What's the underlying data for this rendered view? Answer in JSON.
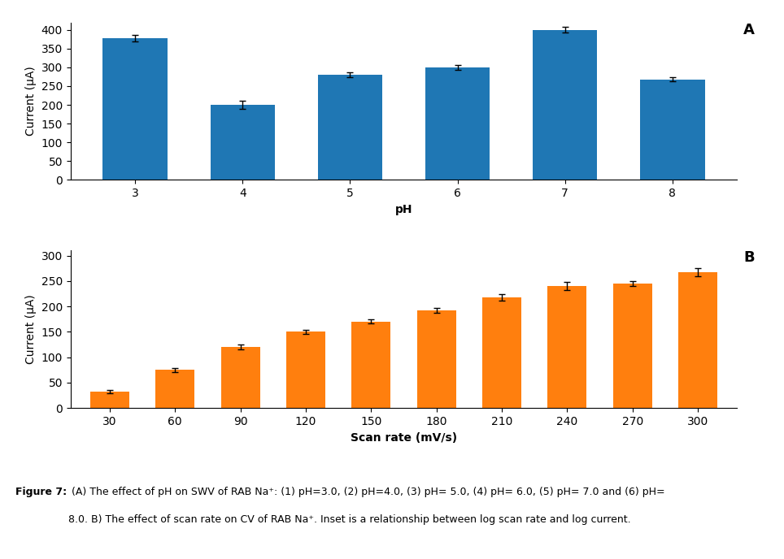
{
  "chart_data": [
    {
      "type": "bar",
      "categories": [
        "3",
        "4",
        "5",
        "6",
        "7",
        "8"
      ],
      "values": [
        378,
        200,
        280,
        300,
        400,
        268
      ],
      "errors": [
        8,
        10,
        6,
        7,
        8,
        6
      ],
      "y_label": "Current (μA)",
      "x_label": "pH",
      "annotations": [
        "A"
      ],
      "ylim": [
        0,
        420
      ],
      "yticks": [
        0,
        50,
        100,
        150,
        200,
        250,
        300,
        350,
        400
      ]
    },
    {
      "type": "bar",
      "categories": [
        "30",
        "60",
        "90",
        "120",
        "150",
        "180",
        "210",
        "240",
        "270",
        "300"
      ],
      "values": [
        32,
        75,
        120,
        150,
        170,
        192,
        218,
        240,
        245,
        268
      ],
      "errors": [
        3,
        4,
        5,
        4,
        4,
        5,
        7,
        8,
        5,
        8
      ],
      "y_label": "Current (μA)",
      "x_label": "Scan rate (mV/s)",
      "annotations": [
        "B"
      ],
      "ylim": [
        0,
        310
      ],
      "yticks": [
        0,
        50,
        100,
        150,
        200,
        250,
        300
      ]
    }
  ],
  "annotations": [
    "Figure 7:",
    " (A) The effect of pH on SWV of RAB Na⁺: (1) pH=3.0, (2) pH=4.0, (3) pH= 5.0, (4) pH= 6.0, (5) pH= 7.0 and (6) pH=",
    "8.0. B) The effect of scan rate on CV of RAB Na⁺. Inset is a relationship between log scan rate and log current."
  ]
}
